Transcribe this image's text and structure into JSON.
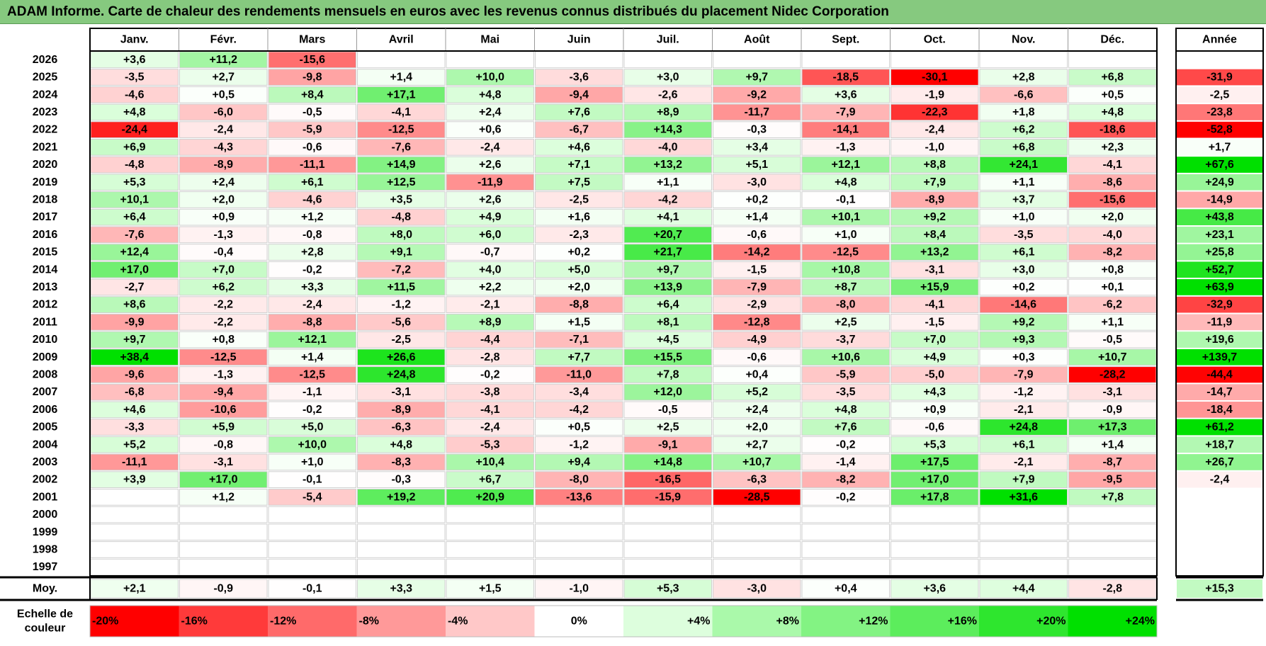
{
  "title": "ADAM Informe. Carte de chaleur des rendements mensuels en euros avec les revenus connus distribués du placement Nidec Corporation",
  "chart_data": {
    "type": "heatmap",
    "columns": [
      "Janv.",
      "Févr.",
      "Mars",
      "Avril",
      "Mai",
      "Juin",
      "Juil.",
      "Août",
      "Sept.",
      "Oct.",
      "Nov.",
      "Déc."
    ],
    "year_column": "Année",
    "rows": [
      {
        "year": "2026",
        "values": [
          "+3,6",
          "+11,2",
          "-15,6",
          "",
          "",
          "",
          "",
          "",
          "",
          "",
          "",
          ""
        ],
        "annual": ""
      },
      {
        "year": "2025",
        "values": [
          "-3,5",
          "+2,7",
          "-9,8",
          "+1,4",
          "+10,0",
          "-3,6",
          "+3,0",
          "+9,7",
          "-18,5",
          "-30,1",
          "+2,8",
          "+6,8"
        ],
        "annual": "-31,9"
      },
      {
        "year": "2024",
        "values": [
          "-4,6",
          "+0,5",
          "+8,4",
          "+17,1",
          "+4,8",
          "-9,4",
          "-2,6",
          "-9,2",
          "+3,6",
          "-1,9",
          "-6,6",
          "+0,5"
        ],
        "annual": "-2,5"
      },
      {
        "year": "2023",
        "values": [
          "+4,8",
          "-6,0",
          "-0,5",
          "-4,1",
          "+2,4",
          "+7,6",
          "+8,9",
          "-11,7",
          "-7,9",
          "-22,3",
          "+1,8",
          "+4,8"
        ],
        "annual": "-23,8"
      },
      {
        "year": "2022",
        "values": [
          "-24,4",
          "-2,4",
          "-5,9",
          "-12,5",
          "+0,6",
          "-6,7",
          "+14,3",
          "-0,3",
          "-14,1",
          "-2,4",
          "+6,2",
          "-18,6"
        ],
        "annual": "-52,8"
      },
      {
        "year": "2021",
        "values": [
          "+6,9",
          "-4,3",
          "-0,6",
          "-7,6",
          "-2,4",
          "+4,6",
          "-4,0",
          "+3,4",
          "-1,3",
          "-1,0",
          "+6,8",
          "+2,3"
        ],
        "annual": "+1,7"
      },
      {
        "year": "2020",
        "values": [
          "-4,8",
          "-8,9",
          "-11,1",
          "+14,9",
          "+2,6",
          "+7,1",
          "+13,2",
          "+5,1",
          "+12,1",
          "+8,8",
          "+24,1",
          "-4,1"
        ],
        "annual": "+67,6"
      },
      {
        "year": "2019",
        "values": [
          "+5,3",
          "+2,4",
          "+6,1",
          "+12,5",
          "-11,9",
          "+7,5",
          "+1,1",
          "-3,0",
          "+4,8",
          "+7,9",
          "+1,1",
          "-8,6"
        ],
        "annual": "+24,9"
      },
      {
        "year": "2018",
        "values": [
          "+10,1",
          "+2,0",
          "-4,6",
          "+3,5",
          "+2,6",
          "-2,5",
          "-4,2",
          "+0,2",
          "-0,1",
          "-8,9",
          "+3,7",
          "-15,6"
        ],
        "annual": "-14,9"
      },
      {
        "year": "2017",
        "values": [
          "+6,4",
          "+0,9",
          "+1,2",
          "-4,8",
          "+4,9",
          "+1,6",
          "+4,1",
          "+1,4",
          "+10,1",
          "+9,2",
          "+1,0",
          "+2,0"
        ],
        "annual": "+43,8"
      },
      {
        "year": "2016",
        "values": [
          "-7,6",
          "-1,3",
          "-0,8",
          "+8,0",
          "+6,0",
          "-2,3",
          "+20,7",
          "-0,6",
          "+1,0",
          "+8,4",
          "-3,5",
          "-4,0"
        ],
        "annual": "+23,1"
      },
      {
        "year": "2015",
        "values": [
          "+12,4",
          "-0,4",
          "+2,8",
          "+9,1",
          "-0,7",
          "+0,2",
          "+21,7",
          "-14,2",
          "-12,5",
          "+13,2",
          "+6,1",
          "-8,2"
        ],
        "annual": "+25,8"
      },
      {
        "year": "2014",
        "values": [
          "+17,0",
          "+7,0",
          "-0,2",
          "-7,2",
          "+4,0",
          "+5,0",
          "+9,7",
          "-1,5",
          "+10,8",
          "-3,1",
          "+3,0",
          "+0,8"
        ],
        "annual": "+52,7"
      },
      {
        "year": "2013",
        "values": [
          "-2,7",
          "+6,2",
          "+3,3",
          "+11,5",
          "+2,2",
          "+2,0",
          "+13,9",
          "-7,9",
          "+8,7",
          "+15,9",
          "+0,2",
          "+0,1"
        ],
        "annual": "+63,9"
      },
      {
        "year": "2012",
        "values": [
          "+8,6",
          "-2,2",
          "-2,4",
          "-1,2",
          "-2,1",
          "-8,8",
          "+6,4",
          "-2,9",
          "-8,0",
          "-4,1",
          "-14,6",
          "-6,2"
        ],
        "annual": "-32,9"
      },
      {
        "year": "2011",
        "values": [
          "-9,9",
          "-2,2",
          "-8,8",
          "-5,6",
          "+8,9",
          "+1,5",
          "+8,1",
          "-12,8",
          "+2,5",
          "-1,5",
          "+9,2",
          "+1,1"
        ],
        "annual": "-11,9"
      },
      {
        "year": "2010",
        "values": [
          "+9,7",
          "+0,8",
          "+12,1",
          "-2,5",
          "-4,4",
          "-7,1",
          "+4,5",
          "-4,9",
          "-3,7",
          "+7,0",
          "+9,3",
          "-0,5"
        ],
        "annual": "+19,6"
      },
      {
        "year": "2009",
        "values": [
          "+38,4",
          "-12,5",
          "+1,4",
          "+26,6",
          "-2,8",
          "+7,7",
          "+15,5",
          "-0,6",
          "+10,6",
          "+4,9",
          "+0,3",
          "+10,7"
        ],
        "annual": "+139,7"
      },
      {
        "year": "2008",
        "values": [
          "-9,6",
          "-1,3",
          "-12,5",
          "+24,8",
          "-0,2",
          "-11,0",
          "+7,8",
          "+0,4",
          "-5,9",
          "-5,0",
          "-7,9",
          "-28,2"
        ],
        "annual": "-44,4"
      },
      {
        "year": "2007",
        "values": [
          "-6,8",
          "-9,4",
          "-1,1",
          "-3,1",
          "-3,8",
          "-3,4",
          "+12,0",
          "+5,2",
          "-3,5",
          "+4,3",
          "-1,2",
          "-3,1"
        ],
        "annual": "-14,7"
      },
      {
        "year": "2006",
        "values": [
          "+4,6",
          "-10,6",
          "-0,2",
          "-8,9",
          "-4,1",
          "-4,2",
          "-0,5",
          "+2,4",
          "+4,8",
          "+0,9",
          "-2,1",
          "-0,9"
        ],
        "annual": "-18,4"
      },
      {
        "year": "2005",
        "values": [
          "-3,3",
          "+5,9",
          "+5,0",
          "-6,3",
          "-2,4",
          "+0,5",
          "+2,5",
          "+2,0",
          "+7,6",
          "-0,6",
          "+24,8",
          "+17,3"
        ],
        "annual": "+61,2"
      },
      {
        "year": "2004",
        "values": [
          "+5,2",
          "-0,8",
          "+10,0",
          "+4,8",
          "-5,3",
          "-1,2",
          "-9,1",
          "+2,7",
          "-0,2",
          "+5,3",
          "+6,1",
          "+1,4"
        ],
        "annual": "+18,7"
      },
      {
        "year": "2003",
        "values": [
          "-11,1",
          "-3,1",
          "+1,0",
          "-8,3",
          "+10,4",
          "+9,4",
          "+14,8",
          "+10,7",
          "-1,4",
          "+17,5",
          "-2,1",
          "-8,7"
        ],
        "annual": "+26,7"
      },
      {
        "year": "2002",
        "values": [
          "+3,9",
          "+17,0",
          "-0,1",
          "-0,3",
          "+6,7",
          "-8,0",
          "-16,5",
          "-6,3",
          "-8,2",
          "+17,0",
          "+7,9",
          "-9,5"
        ],
        "annual": "-2,4"
      },
      {
        "year": "2001",
        "values": [
          "",
          "+1,2",
          "-5,4",
          "+19,2",
          "+20,9",
          "-13,6",
          "-15,9",
          "-28,5",
          "-0,2",
          "+17,8",
          "+31,6",
          "+7,8"
        ],
        "annual": ""
      },
      {
        "year": "2000",
        "values": [
          "",
          "",
          "",
          "",
          "",
          "",
          "",
          "",
          "",
          "",
          "",
          ""
        ],
        "annual": ""
      },
      {
        "year": "1999",
        "values": [
          "",
          "",
          "",
          "",
          "",
          "",
          "",
          "",
          "",
          "",
          "",
          ""
        ],
        "annual": ""
      },
      {
        "year": "1998",
        "values": [
          "",
          "",
          "",
          "",
          "",
          "",
          "",
          "",
          "",
          "",
          "",
          ""
        ],
        "annual": ""
      },
      {
        "year": "1997",
        "values": [
          "",
          "",
          "",
          "",
          "",
          "",
          "",
          "",
          "",
          "",
          "",
          ""
        ],
        "annual": ""
      }
    ],
    "average": {
      "label": "Moy.",
      "values": [
        "+2,1",
        "-0,9",
        "-0,1",
        "+3,3",
        "+1,5",
        "-1,0",
        "+5,3",
        "-3,0",
        "+0,4",
        "+3,6",
        "+4,4",
        "-2,8"
      ],
      "annual": "+15,3"
    },
    "scale": {
      "label": [
        "Echelle de",
        "couleur"
      ],
      "stops": [
        "-20%",
        "-16%",
        "-12%",
        "-8%",
        "-4%",
        "0%",
        "+4%",
        "+8%",
        "+12%",
        "+16%",
        "+20%",
        "+24%"
      ],
      "colors": [
        "#ff0000",
        "#ff3a3a",
        "#ff6a6a",
        "#ff9999",
        "#ffc8c8",
        "#ffffff",
        "#ddfedd",
        "#aaf9aa",
        "#83f383",
        "#5ced5c",
        "#2ee62e",
        "#00e000"
      ]
    }
  }
}
